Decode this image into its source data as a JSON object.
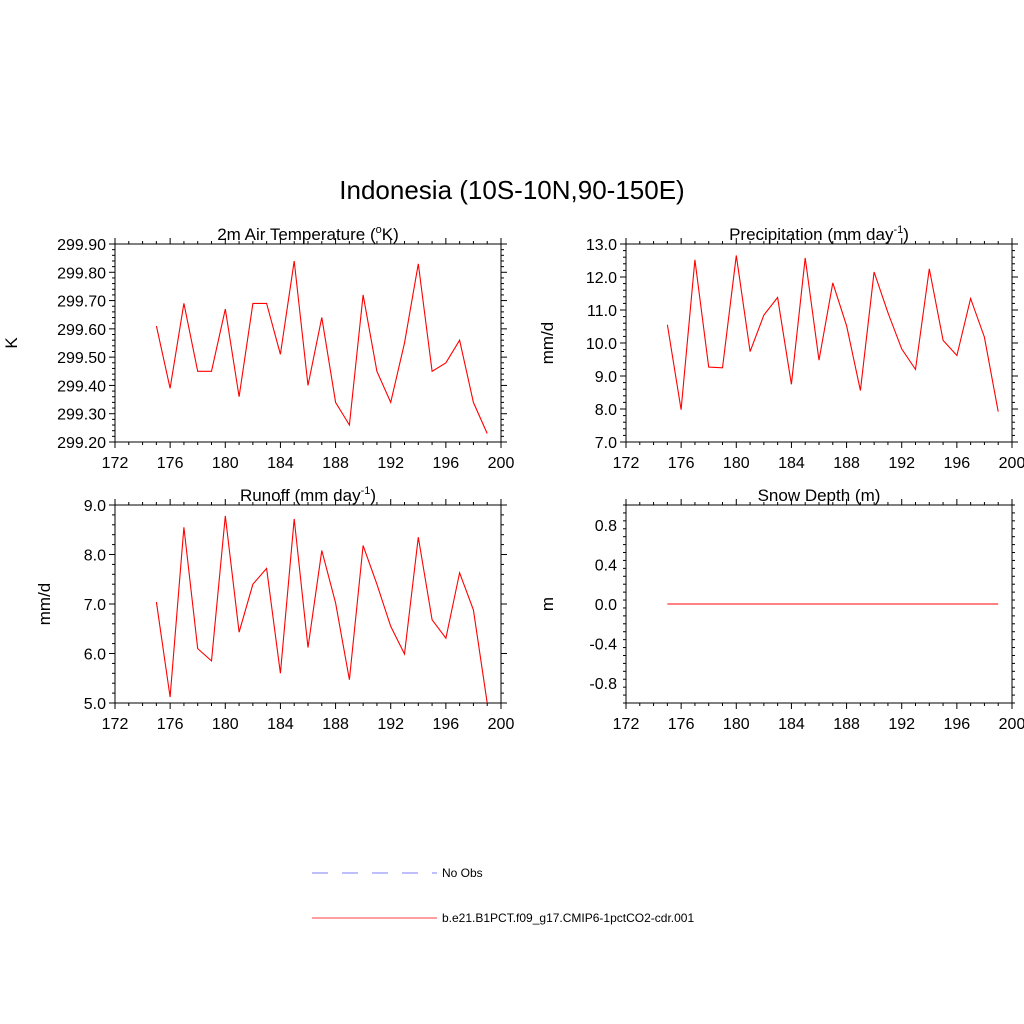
{
  "figure": {
    "title": "Indonesia (10S-10N,90-150E)"
  },
  "legend": {
    "placement": "bottom-center",
    "items": [
      {
        "label": "No Obs",
        "color": "#9999ff",
        "style": "dashed"
      },
      {
        "label": "b.e21.B1PCT.f09_g17.CMIP6-1pctCO2-cdr.001",
        "color": "#ff0000",
        "style": "solid"
      }
    ]
  },
  "chart_data": [
    {
      "type": "line",
      "title_main": "2m Air Temperature (",
      "title_sup": "o",
      "title_tail": "K)",
      "xlabel": "",
      "ylabel": "K",
      "xlim": [
        172,
        200
      ],
      "ylim": [
        299.2,
        299.9
      ],
      "xticks": [
        "172",
        "176",
        "180",
        "184",
        "188",
        "192",
        "196",
        "200"
      ],
      "yticks": [
        "299.20",
        "299.30",
        "299.40",
        "299.50",
        "299.60",
        "299.70",
        "299.80",
        "299.90"
      ],
      "grid": false,
      "series": [
        {
          "name": "b.e21.B1PCT.f09_g17.CMIP6-1pctCO2-cdr.001",
          "color": "#ff0000",
          "x": [
            175,
            176,
            177,
            178,
            179,
            180,
            181,
            182,
            183,
            184,
            185,
            186,
            187,
            188,
            189,
            190,
            191,
            192,
            193,
            194,
            195,
            196,
            197,
            198,
            199
          ],
          "values": [
            299.61,
            299.39,
            299.69,
            299.45,
            299.45,
            299.67,
            299.36,
            299.69,
            299.69,
            299.51,
            299.84,
            299.4,
            299.64,
            299.34,
            299.26,
            299.72,
            299.45,
            299.34,
            299.55,
            299.83,
            299.45,
            299.48,
            299.56,
            299.34,
            299.23
          ]
        }
      ]
    },
    {
      "type": "line",
      "title_main": "Precipitation (mm day",
      "title_sup": "-1",
      "title_tail": ")",
      "xlabel": "",
      "ylabel": "mm/d",
      "xlim": [
        172,
        200
      ],
      "ylim": [
        7.0,
        13.0
      ],
      "xticks": [
        "172",
        "176",
        "180",
        "184",
        "188",
        "192",
        "196",
        "200"
      ],
      "yticks": [
        "7.0",
        "8.0",
        "9.0",
        "10.0",
        "11.0",
        "12.0",
        "13.0"
      ],
      "grid": false,
      "series": [
        {
          "name": "b.e21.B1PCT.f09_g17.CMIP6-1pctCO2-cdr.001",
          "color": "#ff0000",
          "x": [
            175,
            176,
            177,
            178,
            179,
            180,
            181,
            182,
            183,
            184,
            185,
            186,
            187,
            188,
            189,
            190,
            191,
            192,
            193,
            194,
            195,
            196,
            197,
            198,
            199
          ],
          "values": [
            10.55,
            7.98,
            12.52,
            9.27,
            9.25,
            12.65,
            9.74,
            10.85,
            11.38,
            8.75,
            12.58,
            9.48,
            11.82,
            10.52,
            8.56,
            12.15,
            10.92,
            9.82,
            9.2,
            12.25,
            10.08,
            9.62,
            11.35,
            10.18,
            7.92
          ]
        }
      ]
    },
    {
      "type": "line",
      "title_main": "Runoff (mm day",
      "title_sup": "-1",
      "title_tail": ")",
      "xlabel": "",
      "ylabel": "mm/d",
      "xlim": [
        172,
        200
      ],
      "ylim": [
        5.0,
        9.0
      ],
      "xticks": [
        "172",
        "176",
        "180",
        "184",
        "188",
        "192",
        "196",
        "200"
      ],
      "yticks": [
        "5.0",
        "6.0",
        "7.0",
        "8.0",
        "9.0"
      ],
      "grid": false,
      "series": [
        {
          "name": "b.e21.B1PCT.f09_g17.CMIP6-1pctCO2-cdr.001",
          "color": "#ff0000",
          "x": [
            175,
            176,
            177,
            178,
            179,
            180,
            181,
            182,
            183,
            184,
            185,
            186,
            187,
            188,
            189,
            190,
            191,
            192,
            193,
            194,
            195,
            196,
            197,
            198,
            199
          ],
          "values": [
            7.04,
            5.12,
            8.55,
            6.1,
            5.85,
            8.78,
            6.43,
            7.4,
            7.72,
            5.6,
            8.72,
            6.12,
            8.08,
            7.02,
            5.47,
            8.18,
            7.4,
            6.55,
            5.99,
            8.35,
            6.68,
            6.31,
            7.63,
            6.88,
            5.0
          ]
        }
      ]
    },
    {
      "type": "line",
      "title_main": "Snow Depth (m)",
      "title_sup": "",
      "title_tail": "",
      "xlabel": "",
      "ylabel": "m",
      "xlim": [
        172,
        200
      ],
      "ylim": [
        -1.0,
        1.0
      ],
      "xticks": [
        "172",
        "176",
        "180",
        "184",
        "188",
        "192",
        "196",
        "200"
      ],
      "yticks": [
        "-0.8",
        "-0.4",
        "0.0",
        "0.4",
        "0.8"
      ],
      "grid": false,
      "series": [
        {
          "name": "b.e21.B1PCT.f09_g17.CMIP6-1pctCO2-cdr.001",
          "color": "#ff0000",
          "x": [
            175,
            199
          ],
          "values": [
            0.0,
            0.0
          ]
        }
      ]
    }
  ]
}
